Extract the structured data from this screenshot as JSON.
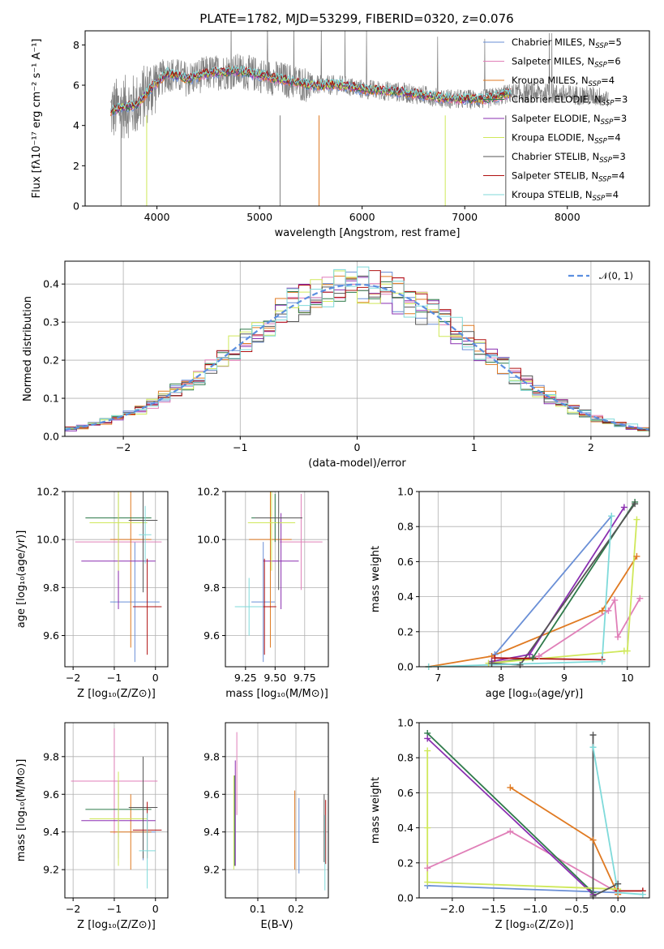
{
  "figure": {
    "title": "PLATE=1782, MJD=53299, FIBERID=0320, z=0.076"
  },
  "colors": {
    "Chabrier MILES": "#6a8fd6",
    "Salpeter MILES": "#e07fb8",
    "Kroupa MILES": "#e07a22",
    "Chabrier ELODIE": "#2e7a4a",
    "Salpeter ELODIE": "#8a2fb0",
    "Kroupa ELODIE": "#cfe85a",
    "Chabrier STELIB": "#555555",
    "Salpeter STELIB": "#b01010",
    "Kroupa STELIB": "#7fdada",
    "data": "#808080",
    "normal": "#5b8fe0"
  },
  "chart_data": [
    {
      "id": "spectrum",
      "type": "line",
      "title": "PLATE=1782, MJD=53299, FIBERID=0320, z=0.076",
      "xlabel": "wavelength [Angstrom, rest frame]",
      "ylabel": "Flux [fλ10⁻¹⁷ erg cm⁻² s⁻¹ A⁻¹]",
      "xlim": [
        3300,
        8800
      ],
      "ylim": [
        0,
        8.7
      ],
      "xticks": [
        4000,
        5000,
        6000,
        7000,
        8000
      ],
      "yticks": [
        0,
        2,
        4,
        6,
        8
      ],
      "grid": false,
      "legend_position": "top-right",
      "legend": [
        {
          "name": "Chabrier MILES",
          "nssp": "5"
        },
        {
          "name": "Salpeter MILES",
          "nssp": "6"
        },
        {
          "name": "Kroupa MILES",
          "nssp": "4"
        },
        {
          "name": "Chabrier ELODIE",
          "nssp": "3"
        },
        {
          "name": "Salpeter ELODIE",
          "nssp": "3"
        },
        {
          "name": "Kroupa ELODIE",
          "nssp": "4"
        },
        {
          "name": "Chabrier STELIB",
          "nssp": "3"
        },
        {
          "name": "Salpeter STELIB",
          "nssp": "4"
        },
        {
          "name": "Kroupa STELIB",
          "nssp": "4"
        }
      ],
      "data_range": [
        3550,
        8400
      ],
      "model_range": [
        3550,
        7450
      ],
      "continuum": [
        [
          3550,
          4.7
        ],
        [
          3650,
          4.9
        ],
        [
          3800,
          5.0
        ],
        [
          3950,
          5.9
        ],
        [
          4100,
          6.6
        ],
        [
          4300,
          6.3
        ],
        [
          4500,
          6.6
        ],
        [
          4800,
          6.7
        ],
        [
          5000,
          6.5
        ],
        [
          5200,
          6.3
        ],
        [
          5500,
          6.0
        ],
        [
          5800,
          6.0
        ],
        [
          6000,
          5.8
        ],
        [
          6300,
          5.7
        ],
        [
          6600,
          5.5
        ],
        [
          6900,
          5.3
        ],
        [
          7200,
          5.3
        ],
        [
          7450,
          5.6
        ],
        [
          7800,
          5.6
        ],
        [
          8100,
          5.5
        ],
        [
          8400,
          5.4
        ]
      ]
    },
    {
      "id": "residuals",
      "type": "histogram",
      "xlabel": "(data-model)/error",
      "ylabel": "Normed distribution",
      "xlim": [
        -2.5,
        2.5
      ],
      "ylim": [
        0,
        0.46
      ],
      "xticks": [
        -2,
        -1,
        0,
        1,
        2
      ],
      "yticks": [
        0.0,
        0.1,
        0.2,
        0.3,
        0.4
      ],
      "grid": true,
      "legend_position": "top-right",
      "reference": {
        "name": "𝒩(0, 1)",
        "mean": 0,
        "sigma": 1
      },
      "bin_width": 0.1
    },
    {
      "id": "age-z",
      "type": "errorbar",
      "xlabel": "Z [log₁₀(Z/Z⊙)]",
      "ylabel": "age  [log₁₀(age/yr)]",
      "xlim": [
        -2.2,
        0.3
      ],
      "ylim": [
        9.47,
        10.2
      ],
      "xticks": [
        -2,
        -1,
        0
      ],
      "yticks": [
        9.6,
        9.8,
        10.0,
        10.2
      ],
      "grid": true,
      "points": [
        {
          "model": "Chabrier MILES",
          "x": -0.5,
          "xerr": 0.6,
          "y": 9.74,
          "yerr": 0.25
        },
        {
          "model": "Salpeter MILES",
          "x": -0.9,
          "xerr": 1.05,
          "y": 9.99,
          "yerr": 0.25
        },
        {
          "model": "Kroupa MILES",
          "x": -0.6,
          "xerr": 0.5,
          "y": 10.0,
          "yerr": 0.45
        },
        {
          "model": "Chabrier ELODIE",
          "x": -0.9,
          "xerr": 0.8,
          "y": 10.09,
          "yerr": 0.1
        },
        {
          "model": "Salpeter ELODIE",
          "x": -0.9,
          "xerr": 0.9,
          "y": 9.91,
          "yerr": 0.2
        },
        {
          "model": "Kroupa ELODIE",
          "x": -0.9,
          "xerr": 0.7,
          "y": 10.07,
          "yerr": 0.2
        },
        {
          "model": "Chabrier STELIB",
          "x": -0.3,
          "xerr": 0.35,
          "y": 10.08,
          "yerr": 0.3
        },
        {
          "model": "Salpeter STELIB",
          "x": -0.2,
          "xerr": 0.35,
          "y": 9.72,
          "yerr": 0.2
        },
        {
          "model": "Kroupa STELIB",
          "x": -0.25,
          "xerr": 0.15,
          "y": 10.02,
          "yerr": 0.12
        }
      ]
    },
    {
      "id": "age-mass",
      "type": "errorbar",
      "xlabel": "mass [log₁₀(M/M⊙)]",
      "ylabel": "",
      "xlim": [
        9.08,
        9.95
      ],
      "ylim": [
        9.47,
        10.2
      ],
      "xticks": [
        9.25,
        9.5,
        9.75
      ],
      "yticks": [
        9.6,
        9.8,
        10.0,
        10.2
      ],
      "grid": true,
      "points": [
        {
          "model": "Chabrier MILES",
          "x": 9.4,
          "xerr": 0.1,
          "y": 9.74,
          "yerr": 0.25
        },
        {
          "model": "Salpeter MILES",
          "x": 9.72,
          "xerr": 0.18,
          "y": 9.99,
          "yerr": 0.2
        },
        {
          "model": "Kroupa MILES",
          "x": 9.46,
          "xerr": 0.18,
          "y": 10.0,
          "yerr": 0.45
        },
        {
          "model": "Chabrier ELODIE",
          "x": 9.5,
          "xerr": 0.2,
          "y": 10.09,
          "yerr": 0.1
        },
        {
          "model": "Salpeter ELODIE",
          "x": 9.55,
          "xerr": 0.15,
          "y": 9.91,
          "yerr": 0.2
        },
        {
          "model": "Kroupa ELODIE",
          "x": 9.47,
          "xerr": 0.2,
          "y": 10.07,
          "yerr": 0.2
        },
        {
          "model": "Chabrier STELIB",
          "x": 9.53,
          "xerr": 0.2,
          "y": 10.09,
          "yerr": 0.3
        },
        {
          "model": "Salpeter STELIB",
          "x": 9.41,
          "xerr": 0.1,
          "y": 9.72,
          "yerr": 0.2
        },
        {
          "model": "Kroupa STELIB",
          "x": 9.28,
          "xerr": 0.12,
          "y": 9.72,
          "yerr": 0.12
        }
      ]
    },
    {
      "id": "weight-age",
      "type": "line",
      "xlabel": "age  [log₁₀(age/yr)]",
      "ylabel": "mass weight",
      "xlim": [
        6.7,
        10.35
      ],
      "ylim": [
        0,
        1
      ],
      "xticks": [
        7,
        8,
        9,
        10
      ],
      "yticks": [
        0.0,
        0.2,
        0.4,
        0.6,
        0.8,
        1.0
      ],
      "grid": true,
      "series": [
        {
          "model": "Chabrier MILES",
          "x": [
            7.9,
            9.75
          ],
          "y": [
            0.07,
            0.86
          ]
        },
        {
          "model": "Salpeter MILES",
          "x": [
            7.8,
            8.6,
            9.7,
            9.8,
            9.85,
            10.2
          ],
          "y": [
            0.02,
            0.06,
            0.32,
            0.38,
            0.17,
            0.39
          ]
        },
        {
          "model": "Kroupa MILES",
          "x": [
            6.85,
            7.85,
            9.6,
            10.15
          ],
          "y": [
            0.0,
            0.06,
            0.32,
            0.63
          ]
        },
        {
          "model": "Chabrier ELODIE",
          "x": [
            7.85,
            8.5,
            10.12
          ],
          "y": [
            0.02,
            0.05,
            0.94
          ]
        },
        {
          "model": "Salpeter ELODIE",
          "x": [
            7.85,
            8.45,
            9.95
          ],
          "y": [
            0.03,
            0.07,
            0.91
          ]
        },
        {
          "model": "Kroupa ELODIE",
          "x": [
            7.8,
            9.95,
            10.0,
            10.15
          ],
          "y": [
            0.02,
            0.09,
            0.09,
            0.84
          ]
        },
        {
          "model": "Chabrier STELIB",
          "x": [
            7.85,
            8.3,
            10.12
          ],
          "y": [
            0.02,
            0.01,
            0.93
          ]
        },
        {
          "model": "Salpeter STELIB",
          "x": [
            7.9,
            9.6
          ],
          "y": [
            0.05,
            0.04
          ]
        },
        {
          "model": "Kroupa STELIB",
          "x": [
            6.85,
            9.6,
            9.75
          ],
          "y": [
            0.0,
            0.03,
            0.86
          ]
        }
      ]
    },
    {
      "id": "mass-z",
      "type": "errorbar",
      "xlabel": "Z [log₁₀(Z/Z⊙)]",
      "ylabel": "mass [log₁₀(M/M⊙)]",
      "xlim": [
        -2.2,
        0.3
      ],
      "ylim": [
        9.05,
        9.98
      ],
      "xticks": [
        -2,
        -1,
        0
      ],
      "yticks": [
        9.2,
        9.4,
        9.6,
        9.8
      ],
      "grid": true,
      "points": [
        {
          "model": "Chabrier MILES",
          "x": -0.3,
          "xerr": 0.3,
          "y": 9.4,
          "yerr": 0.15
        },
        {
          "model": "Salpeter MILES",
          "x": -1.0,
          "xerr": 1.05,
          "y": 9.67,
          "yerr": 0.28
        },
        {
          "model": "Kroupa MILES",
          "x": -0.6,
          "xerr": 0.5,
          "y": 9.4,
          "yerr": 0.2
        },
        {
          "model": "Chabrier ELODIE",
          "x": -0.9,
          "xerr": 0.8,
          "y": 9.52,
          "yerr": 0.15
        },
        {
          "model": "Salpeter ELODIE",
          "x": -0.9,
          "xerr": 0.9,
          "y": 9.46,
          "yerr": 0.2
        },
        {
          "model": "Kroupa ELODIE",
          "x": -0.9,
          "xerr": 0.7,
          "y": 9.47,
          "yerr": 0.25
        },
        {
          "model": "Chabrier STELIB",
          "x": -0.3,
          "xerr": 0.35,
          "y": 9.53,
          "yerr": 0.27
        },
        {
          "model": "Salpeter STELIB",
          "x": -0.2,
          "xerr": 0.35,
          "y": 9.41,
          "yerr": 0.15
        },
        {
          "model": "Kroupa STELIB",
          "x": -0.2,
          "xerr": 0.2,
          "y": 9.3,
          "yerr": 0.2
        }
      ]
    },
    {
      "id": "mass-ebv",
      "type": "errorbar",
      "xlabel": "E(B-V)",
      "ylabel": "",
      "xlim": [
        0.015,
        0.285
      ],
      "ylim": [
        9.05,
        9.98
      ],
      "xticks": [
        0.1,
        0.2
      ],
      "yticks": [
        9.2,
        9.4,
        9.6,
        9.8
      ],
      "grid": true,
      "points": [
        {
          "model": "Chabrier MILES",
          "x": 0.208,
          "y": 9.38,
          "yerr": 0.2
        },
        {
          "model": "Salpeter MILES",
          "x": 0.045,
          "y": 9.71,
          "yerr": 0.22
        },
        {
          "model": "Kroupa MILES",
          "x": 0.197,
          "y": 9.41,
          "yerr": 0.21
        },
        {
          "model": "Chabrier ELODIE",
          "x": 0.039,
          "y": 9.46,
          "yerr": 0.24
        },
        {
          "model": "Salpeter ELODIE",
          "x": 0.041,
          "y": 9.5,
          "yerr": 0.28
        },
        {
          "model": "Kroupa ELODIE",
          "x": 0.037,
          "y": 9.45,
          "yerr": 0.25
        },
        {
          "model": "Chabrier STELIB",
          "x": 0.274,
          "y": 9.42,
          "yerr": 0.18
        },
        {
          "model": "Salpeter STELIB",
          "x": 0.278,
          "y": 9.4,
          "yerr": 0.17
        },
        {
          "model": "Kroupa STELIB",
          "x": 0.276,
          "y": 9.29,
          "yerr": 0.2
        }
      ]
    },
    {
      "id": "weight-z",
      "type": "line",
      "xlabel": "Z [log₁₀(Z/Z⊙)]",
      "ylabel": "mass weight",
      "xlim": [
        -2.4,
        0.38
      ],
      "ylim": [
        0,
        1
      ],
      "xticks": [
        -2.0,
        -1.5,
        -1.0,
        -0.5,
        0.0
      ],
      "yticks": [
        0.0,
        0.2,
        0.4,
        0.6,
        0.8,
        1.0
      ],
      "grid": true,
      "series": [
        {
          "model": "Chabrier MILES",
          "x": [
            -2.3,
            0.0
          ],
          "y": [
            0.07,
            0.03
          ]
        },
        {
          "model": "Salpeter MILES",
          "x": [
            -2.3,
            -1.3,
            0.0
          ],
          "y": [
            0.17,
            0.38,
            0.03
          ]
        },
        {
          "model": "Kroupa MILES",
          "x": [
            -1.3,
            -0.3,
            0.0
          ],
          "y": [
            0.63,
            0.33,
            0.02
          ]
        },
        {
          "model": "Chabrier ELODIE",
          "x": [
            -2.3,
            -0.3
          ],
          "y": [
            0.94,
            0.03
          ]
        },
        {
          "model": "Salpeter ELODIE",
          "x": [
            -2.3,
            -0.3
          ],
          "y": [
            0.91,
            0.02
          ]
        },
        {
          "model": "Kroupa ELODIE",
          "x": [
            -2.3,
            -2.3,
            -2.3,
            0.0
          ],
          "y": [
            0.84,
            0.4,
            0.09,
            0.05
          ]
        },
        {
          "model": "Chabrier STELIB",
          "x": [
            -0.3,
            -0.3,
            0.0
          ],
          "y": [
            0.93,
            0.01,
            0.08
          ]
        },
        {
          "model": "Salpeter STELIB",
          "x": [
            0.0,
            0.3
          ],
          "y": [
            0.04,
            0.04
          ]
        },
        {
          "model": "Kroupa STELIB",
          "x": [
            -0.3,
            0.0,
            0.3
          ],
          "y": [
            0.86,
            0.03,
            0.02
          ]
        }
      ]
    }
  ]
}
